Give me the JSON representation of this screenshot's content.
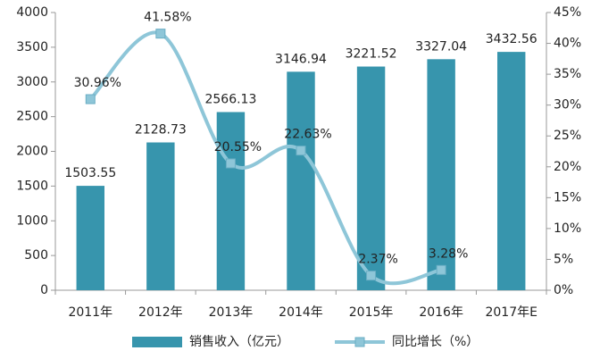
{
  "chart_data": {
    "type": "bar",
    "categories": [
      "2011年",
      "2012年",
      "2013年",
      "2014年",
      "2015年",
      "2016年",
      "2017年E"
    ],
    "series": [
      {
        "name": "销售收入（亿元）",
        "type": "bar",
        "color": "#3795ad",
        "values": [
          1503.55,
          2128.73,
          2566.13,
          3146.94,
          3221.52,
          3327.04,
          3432.56
        ]
      },
      {
        "name": "同比增长（%）",
        "type": "line",
        "axis": "y2",
        "color": "#8ec6d8",
        "values": [
          30.96,
          41.58,
          20.55,
          22.63,
          2.37,
          3.28,
          null
        ],
        "value_labels": [
          "30.96%",
          "41.58%",
          "20.55%",
          "22.63%",
          "2.37%",
          "3.28%",
          null
        ]
      }
    ],
    "ylim": [
      0,
      4000
    ],
    "yticks": [
      0,
      500,
      1000,
      1500,
      2000,
      2500,
      3000,
      3500,
      4000
    ],
    "y2lim": [
      0,
      45
    ],
    "y2ticks": [
      {
        "value": 0,
        "label": "0%"
      },
      {
        "value": 5,
        "label": "5%"
      },
      {
        "value": 10,
        "label": "10%"
      },
      {
        "value": 15,
        "label": "15%"
      },
      {
        "value": 20,
        "label": "20%"
      },
      {
        "value": 25,
        "label": "25%"
      },
      {
        "value": 30,
        "label": "30%"
      },
      {
        "value": 35,
        "label": "35%"
      },
      {
        "value": 40,
        "label": "40%"
      },
      {
        "value": 45,
        "label": "45%"
      }
    ],
    "grid": false,
    "legend": "bottom"
  }
}
